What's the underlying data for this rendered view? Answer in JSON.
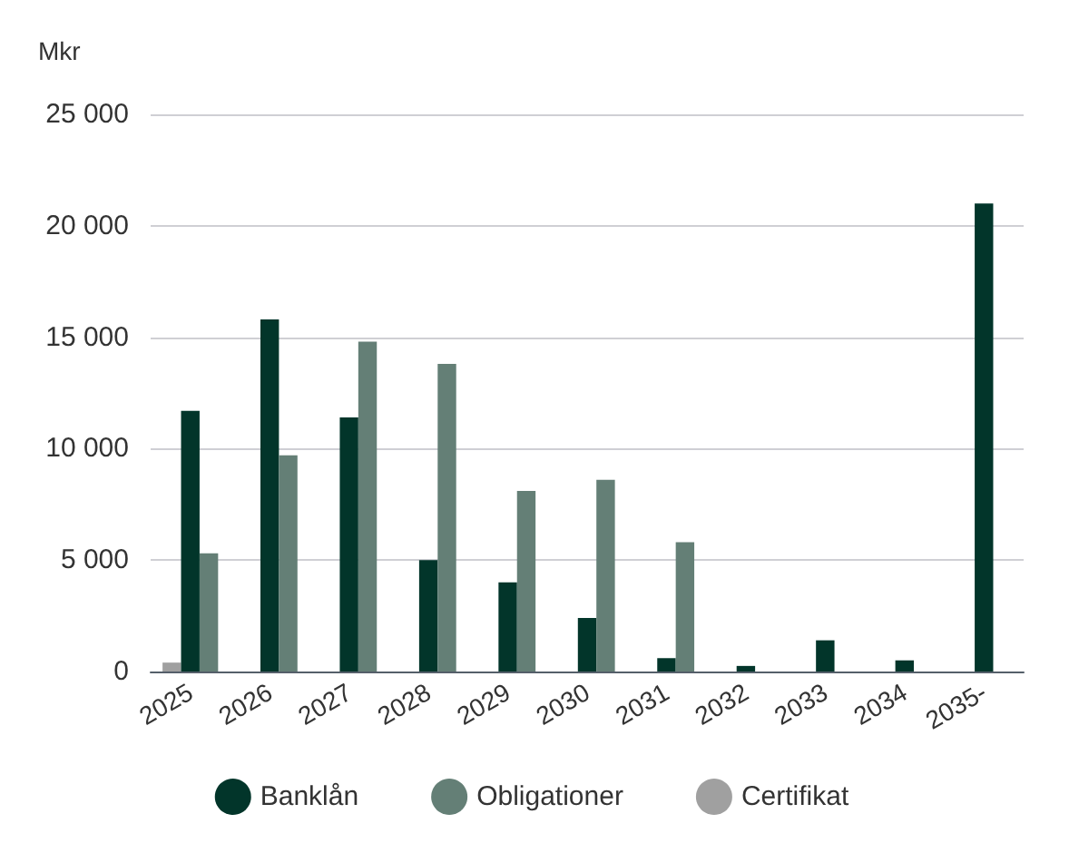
{
  "chart_data": {
    "type": "bar",
    "ylabel": "Mkr",
    "categories": [
      "2025",
      "2026",
      "2027",
      "2028",
      "2029",
      "2030",
      "2031",
      "2032",
      "2033",
      "2034",
      "2035-"
    ],
    "series": [
      {
        "name": "Banklån",
        "color": "#02352a",
        "values": [
          11700,
          15800,
          11400,
          5000,
          4000,
          2400,
          600,
          250,
          1400,
          500,
          21000
        ]
      },
      {
        "name": "Obligationer",
        "color": "#647f76",
        "values": [
          5300,
          9700,
          14800,
          13800,
          8100,
          8600,
          5800,
          null,
          null,
          null,
          null
        ]
      },
      {
        "name": "Certifikat",
        "color": "#a0a0a0",
        "values": [
          400,
          null,
          null,
          null,
          null,
          null,
          null,
          null,
          null,
          null,
          null
        ]
      }
    ],
    "ylim": [
      0,
      25000
    ],
    "yticks": [
      {
        "value": 0,
        "label": "0"
      },
      {
        "value": 5000,
        "label": "5 000"
      },
      {
        "value": 10000,
        "label": "10 000"
      },
      {
        "value": 15000,
        "label": "15 000"
      },
      {
        "value": 20000,
        "label": "20 000"
      },
      {
        "value": 25000,
        "label": "25 000"
      }
    ],
    "grid": "y",
    "legend": "bottom"
  }
}
